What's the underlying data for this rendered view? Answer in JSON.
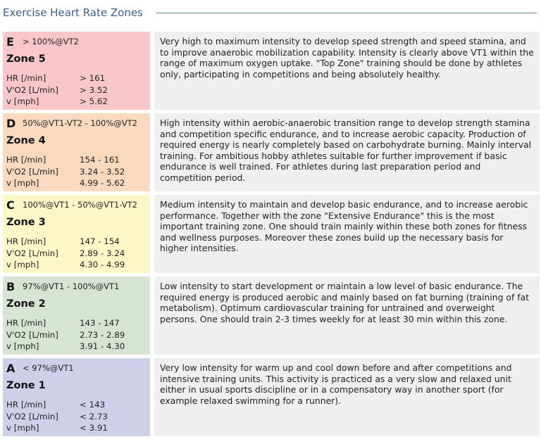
{
  "title": "Exercise Heart Rate Zones",
  "metric_labels": {
    "hr": "HR [/min]",
    "vo2": "V'O2 [L/min]",
    "v": "v [mph]"
  },
  "zones": [
    {
      "letter": "E",
      "threshold": "> 100%@VT2",
      "name": "Zone 5",
      "color": "#f9c6c9",
      "hr": "> 161",
      "vo2": "> 3.52",
      "v": "> 5.62",
      "description": "Very high to maximum intensity to develop speed strength and speed stamina, and to improve anaerobic mobilization capability. Intensity is clearly above VT1 within the range of maximum oxygen uptake. \"Top Zone\" training should be done by athletes only, participating in competitions and being absolutely healthy."
    },
    {
      "letter": "D",
      "threshold": "50%@VT1-VT2 - 100%@VT2",
      "name": "Zone 4",
      "color": "#fad9bf",
      "hr": "154 - 161",
      "vo2": "3.24 - 3.52",
      "v": "4.99 - 5.62",
      "description": "High intensity within aerobic-anaerobic transition range to develop strength stamina and competition specific endurance, and to increase aerobic capacity. Production of required energy is nearly completely based on carbohydrate burning. Mainly interval training. For ambitious hobby athletes suitable for further improvement if basic endurance is well trained. For athletes during last preparation period and competition period."
    },
    {
      "letter": "C",
      "threshold": "100%@VT1 - 50%@VT1-VT2",
      "name": "Zone 3",
      "color": "#fbf7c7",
      "hr": "147 - 154",
      "vo2": "2.89 - 3.24",
      "v": "4.30 - 4.99",
      "description": "Medium intensity to maintain and develop basic endurance, and to increase aerobic performance. Together with the zone \"Extensive Endurance\" this is the most important training zone. One should train mainly within these both zones for fitness and wellness purposes. Moreover these zones build up the necessary basis for higher intensities."
    },
    {
      "letter": "B",
      "threshold": "97%@VT1 - 100%@VT1",
      "name": "Zone 2",
      "color": "#d5e5d2",
      "hr": "143 - 147",
      "vo2": "2.73 - 2.89",
      "v": "3.91 - 4.30",
      "description": "Low intensity to start development or maintain a low level of basic endurance. The required energy is produced aerobic and mainly based on fat burning (training of fat metabolism). Optimum cardiovascular training for untrained and overweight persons. One should train 2-3 times weekly for at least 30 min within this zone."
    },
    {
      "letter": "A",
      "threshold": "< 97%@VT1",
      "name": "Zone 1",
      "color": "#cdd0e8",
      "hr": "< 143",
      "vo2": "< 2.73",
      "v": "< 3.91",
      "description": "Very low intensity for warm up and cool down before and after competitions and intensive training units. This activity is practiced as a very slow and relaxed unit either in usual sports discipline or in a compensatory way in another sport (for example relaxed swimming for a runner)."
    }
  ]
}
